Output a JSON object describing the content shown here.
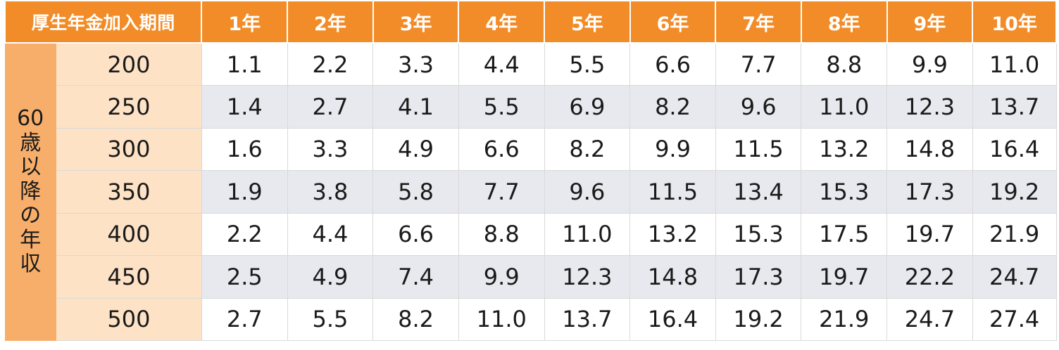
{
  "table": {
    "corner_label": "厚生年金加入期間",
    "period_headers": [
      "1年",
      "2年",
      "3年",
      "4年",
      "5年",
      "6年",
      "7年",
      "8年",
      "9年",
      "10年"
    ],
    "side_label": "60歳以降の年収",
    "rows": [
      {
        "income": "200",
        "values": [
          "1.1",
          "2.2",
          "3.3",
          "4.4",
          "5.5",
          "6.6",
          "7.7",
          "8.8",
          "9.9",
          "11.0"
        ]
      },
      {
        "income": "250",
        "values": [
          "1.4",
          "2.7",
          "4.1",
          "5.5",
          "6.9",
          "8.2",
          "9.6",
          "11.0",
          "12.3",
          "13.7"
        ]
      },
      {
        "income": "300",
        "values": [
          "1.6",
          "3.3",
          "4.9",
          "6.6",
          "8.2",
          "9.9",
          "11.5",
          "13.2",
          "14.8",
          "16.4"
        ]
      },
      {
        "income": "350",
        "values": [
          "1.9",
          "3.8",
          "5.8",
          "7.7",
          "9.6",
          "11.5",
          "13.4",
          "15.3",
          "17.3",
          "19.2"
        ]
      },
      {
        "income": "400",
        "values": [
          "2.2",
          "4.4",
          "6.6",
          "8.8",
          "11.0",
          "13.2",
          "15.3",
          "17.5",
          "19.7",
          "21.9"
        ]
      },
      {
        "income": "450",
        "values": [
          "2.5",
          "4.9",
          "7.4",
          "9.9",
          "12.3",
          "14.8",
          "17.3",
          "19.7",
          "22.2",
          "24.7"
        ]
      },
      {
        "income": "500",
        "values": [
          "2.7",
          "5.5",
          "8.2",
          "11.0",
          "13.7",
          "16.4",
          "19.2",
          "21.9",
          "24.7",
          "27.4"
        ]
      }
    ]
  },
  "colors": {
    "header_bg": "#f28c28",
    "side_bg": "#f7ae6a",
    "income_bg": "#fde2c6",
    "shaded_row_bg": "#e8e9ef"
  }
}
